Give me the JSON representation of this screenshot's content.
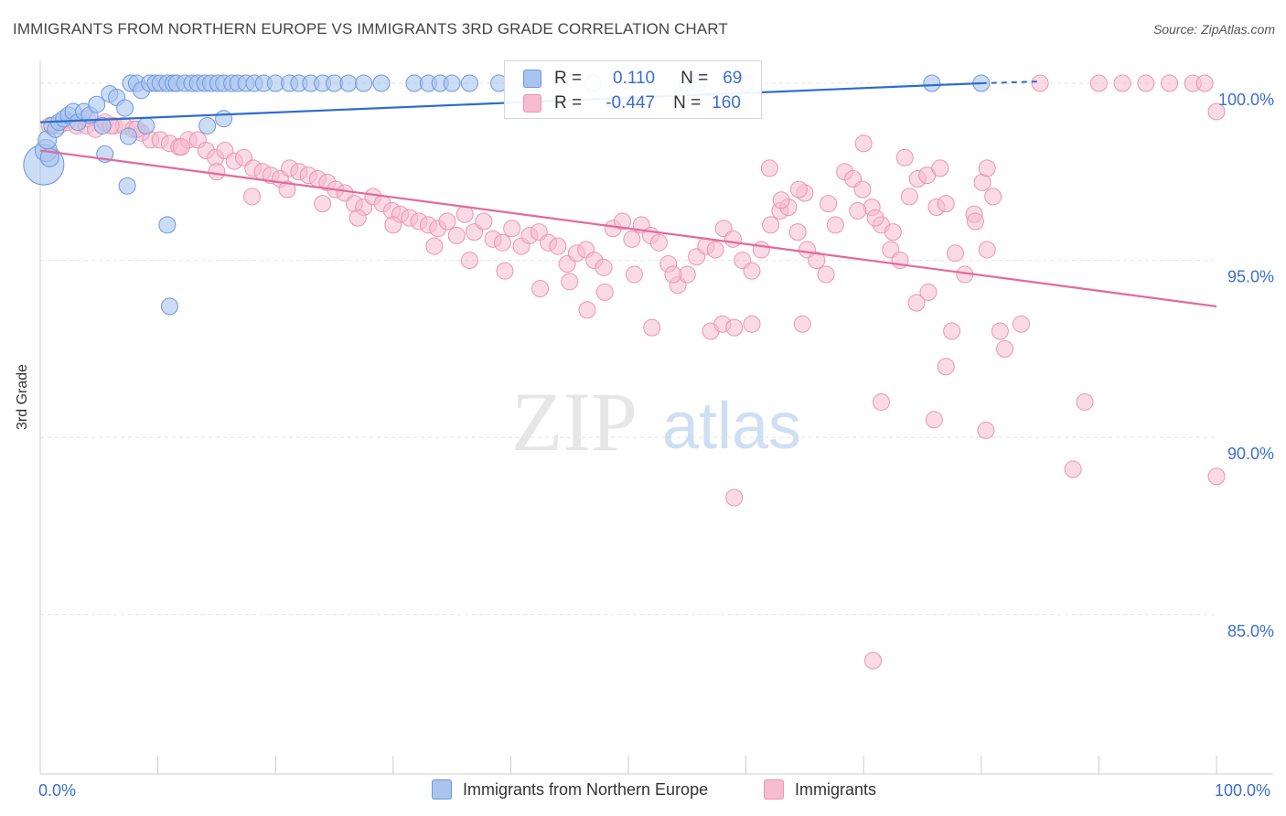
{
  "title": "IMMIGRANTS FROM NORTHERN EUROPE VS IMMIGRANTS 3RD GRADE CORRELATION CHART",
  "source": "Source: ZipAtlas.com",
  "watermark": {
    "zip": "ZIP",
    "atlas": "atlas"
  },
  "legend_box": {
    "rows": [
      {
        "r_label": "R =",
        "r_value": "0.110",
        "n_label": "N =",
        "n_value": "69"
      },
      {
        "r_label": "R =",
        "r_value": "-0.447",
        "n_label": "N =",
        "n_value": "160"
      }
    ]
  },
  "bottom_legend": [
    "Immigrants from Northern Europe",
    "Immigrants"
  ],
  "colors": {
    "blue_fill": "#a9c4ef",
    "blue_stroke": "#6f97dc",
    "blue_line": "#2b6ccf",
    "pink_fill": "#f6bcd0",
    "pink_stroke": "#ec94b3",
    "pink_line": "#e5689a",
    "accent_text": "#3a6fcf"
  },
  "chart_data": {
    "type": "scatter",
    "xlabel": "",
    "ylabel": "3rd Grade",
    "x_tick_labels": [
      "0.0%",
      "100.0%"
    ],
    "y_tick_labels": [
      "100.0%",
      "95.0%",
      "90.0%",
      "85.0%"
    ],
    "xlim": [
      0,
      100
    ],
    "ylim": [
      80.5,
      100.8
    ],
    "grid": true,
    "legend_placement": "top-center",
    "series": [
      {
        "name": "Immigrants from Northern Europe",
        "r": 0.11,
        "n": 69,
        "trend": {
          "x0": 0,
          "y0": 98.9,
          "x1": 80,
          "y1": 100.0,
          "dash_to": 85,
          "dash_y": 100.05
        },
        "points": [
          [
            0.3,
            97.7,
            22
          ],
          [
            0.5,
            98.1,
            12
          ],
          [
            0.6,
            98.4,
            10
          ],
          [
            0.8,
            97.9,
            10
          ],
          [
            1.0,
            98.8,
            9
          ],
          [
            1.3,
            98.7,
            9
          ],
          [
            1.6,
            98.9,
            9
          ],
          [
            2.0,
            99.0,
            9
          ],
          [
            2.4,
            99.1,
            9
          ],
          [
            2.8,
            99.2,
            9
          ],
          [
            3.2,
            98.9,
            9
          ],
          [
            3.7,
            99.2,
            9
          ],
          [
            4.2,
            99.1,
            9
          ],
          [
            4.8,
            99.4,
            9
          ],
          [
            5.3,
            98.8,
            9
          ],
          [
            5.9,
            99.7,
            9
          ],
          [
            6.5,
            99.6,
            9
          ],
          [
            7.2,
            99.3,
            9
          ],
          [
            7.7,
            100,
            9
          ],
          [
            8.2,
            100,
            9
          ],
          [
            8.6,
            99.8,
            9
          ],
          [
            9.3,
            100,
            9
          ],
          [
            9.8,
            100,
            9
          ],
          [
            10.2,
            100,
            9
          ],
          [
            10.8,
            100,
            9
          ],
          [
            11.3,
            100,
            9
          ],
          [
            11.6,
            100,
            9
          ],
          [
            12.3,
            100,
            9
          ],
          [
            12.9,
            100,
            9
          ],
          [
            13.4,
            100,
            9
          ],
          [
            14.0,
            100,
            9
          ],
          [
            14.5,
            100,
            9
          ],
          [
            15.1,
            100,
            9
          ],
          [
            15.6,
            100,
            9
          ],
          [
            16.3,
            100,
            9
          ],
          [
            16.8,
            100,
            9
          ],
          [
            17.5,
            100,
            9
          ],
          [
            18.2,
            100,
            9
          ],
          [
            19.0,
            100,
            9
          ],
          [
            20.0,
            100,
            9
          ],
          [
            21.2,
            100,
            9
          ],
          [
            22.0,
            100,
            9
          ],
          [
            23.0,
            100,
            9
          ],
          [
            24.0,
            100,
            9
          ],
          [
            25.0,
            100,
            9
          ],
          [
            26.2,
            100,
            9
          ],
          [
            27.5,
            100,
            9
          ],
          [
            29.0,
            100,
            9
          ],
          [
            31.8,
            100,
            9
          ],
          [
            33.0,
            100,
            9
          ],
          [
            34.0,
            100,
            9
          ],
          [
            35.0,
            100,
            9
          ],
          [
            36.5,
            100,
            9
          ],
          [
            39.0,
            100,
            9
          ],
          [
            42.0,
            100,
            9
          ],
          [
            47.0,
            100,
            9
          ],
          [
            55.0,
            100,
            9
          ],
          [
            56.0,
            100,
            9
          ],
          [
            60.0,
            100,
            9
          ],
          [
            75.8,
            100,
            9
          ],
          [
            80.0,
            100,
            9
          ],
          [
            7.5,
            98.5,
            9
          ],
          [
            9.0,
            98.8,
            9
          ],
          [
            14.2,
            98.8,
            9
          ],
          [
            15.6,
            99.0,
            9
          ],
          [
            7.4,
            97.1,
            9
          ],
          [
            5.5,
            98.0,
            9
          ],
          [
            10.8,
            96.0,
            9
          ],
          [
            11.0,
            93.7,
            9
          ]
        ]
      },
      {
        "name": "Immigrants",
        "r": -0.447,
        "n": 160,
        "trend": {
          "x0": 0,
          "y0": 98.1,
          "x1": 100,
          "y1": 93.7
        },
        "points": [
          [
            0.8,
            98.8
          ],
          [
            1.6,
            98.8
          ],
          [
            2.3,
            98.9
          ],
          [
            3.1,
            98.8
          ],
          [
            3.9,
            98.8
          ],
          [
            4.7,
            98.7
          ],
          [
            5.5,
            98.9
          ],
          [
            6.3,
            98.8
          ],
          [
            7.1,
            98.8
          ],
          [
            7.9,
            98.7
          ],
          [
            8.6,
            98.6
          ],
          [
            9.4,
            98.4
          ],
          [
            10.2,
            98.4
          ],
          [
            11.0,
            98.3
          ],
          [
            11.8,
            98.2
          ],
          [
            12.6,
            98.4
          ],
          [
            13.4,
            98.4
          ],
          [
            14.1,
            98.1
          ],
          [
            14.9,
            97.9
          ],
          [
            15.7,
            98.1
          ],
          [
            16.5,
            97.8
          ],
          [
            17.3,
            97.9
          ],
          [
            18.1,
            97.6
          ],
          [
            18.9,
            97.5
          ],
          [
            19.6,
            97.4
          ],
          [
            20.4,
            97.3
          ],
          [
            21.2,
            97.6
          ],
          [
            22.0,
            97.5
          ],
          [
            22.8,
            97.4
          ],
          [
            23.6,
            97.3
          ],
          [
            24.4,
            97.2
          ],
          [
            25.1,
            97.0
          ],
          [
            25.9,
            96.9
          ],
          [
            26.7,
            96.6
          ],
          [
            27.5,
            96.5
          ],
          [
            28.3,
            96.8
          ],
          [
            29.1,
            96.6
          ],
          [
            29.9,
            96.4
          ],
          [
            30.6,
            96.3
          ],
          [
            31.4,
            96.2
          ],
          [
            32.2,
            96.1
          ],
          [
            33.0,
            96.0
          ],
          [
            33.8,
            95.9
          ],
          [
            34.6,
            96.1
          ],
          [
            35.4,
            95.7
          ],
          [
            36.1,
            96.3
          ],
          [
            36.9,
            95.8
          ],
          [
            37.7,
            96.1
          ],
          [
            38.5,
            95.6
          ],
          [
            39.3,
            95.5
          ],
          [
            40.1,
            95.9
          ],
          [
            40.9,
            95.4
          ],
          [
            41.6,
            95.7
          ],
          [
            42.4,
            95.8
          ],
          [
            43.2,
            95.5
          ],
          [
            44.0,
            95.4
          ],
          [
            44.8,
            94.9
          ],
          [
            45.6,
            95.2
          ],
          [
            46.4,
            95.3
          ],
          [
            47.1,
            95.0
          ],
          [
            47.9,
            94.8
          ],
          [
            48.7,
            95.9
          ],
          [
            49.5,
            96.1
          ],
          [
            50.3,
            95.6
          ],
          [
            51.1,
            96.0
          ],
          [
            51.9,
            95.7
          ],
          [
            52.6,
            95.5
          ],
          [
            53.4,
            94.9
          ],
          [
            54.2,
            94.3
          ],
          [
            55.0,
            94.6
          ],
          [
            55.8,
            95.1
          ],
          [
            56.6,
            95.4
          ],
          [
            57.4,
            95.3
          ],
          [
            58.1,
            95.9
          ],
          [
            58.9,
            95.6
          ],
          [
            59.7,
            95.0
          ],
          [
            60.5,
            94.7
          ],
          [
            61.3,
            95.3
          ],
          [
            62.1,
            96.0
          ],
          [
            62.9,
            96.4
          ],
          [
            63.6,
            96.5
          ],
          [
            64.4,
            95.8
          ],
          [
            65.2,
            95.3
          ],
          [
            66.0,
            95.0
          ],
          [
            66.8,
            94.6
          ],
          [
            67.6,
            96.0
          ],
          [
            68.4,
            97.5
          ],
          [
            69.1,
            97.3
          ],
          [
            69.9,
            97.0
          ],
          [
            70.7,
            96.5
          ],
          [
            71.5,
            96.0
          ],
          [
            72.3,
            95.3
          ],
          [
            73.1,
            95.0
          ],
          [
            73.9,
            96.8
          ],
          [
            74.6,
            97.3
          ],
          [
            75.4,
            97.4
          ],
          [
            76.2,
            96.5
          ],
          [
            77.0,
            96.6
          ],
          [
            77.8,
            95.2
          ],
          [
            78.6,
            94.6
          ],
          [
            79.4,
            96.3
          ],
          [
            80.1,
            97.2
          ],
          [
            81.0,
            96.8
          ],
          [
            4.0,
            99.0
          ],
          [
            6.0,
            98.8
          ],
          [
            8.2,
            98.7
          ],
          [
            12.0,
            98.2
          ],
          [
            15.0,
            97.5
          ],
          [
            18.0,
            96.8
          ],
          [
            21.0,
            97.0
          ],
          [
            24.0,
            96.6
          ],
          [
            27.0,
            96.2
          ],
          [
            30.0,
            96.0
          ],
          [
            33.5,
            95.4
          ],
          [
            36.5,
            95.0
          ],
          [
            39.5,
            94.7
          ],
          [
            42.5,
            94.2
          ],
          [
            45.0,
            94.4
          ],
          [
            46.5,
            93.6
          ],
          [
            48.0,
            94.1
          ],
          [
            50.5,
            94.6
          ],
          [
            52.0,
            93.1
          ],
          [
            53.8,
            94.6
          ],
          [
            57.0,
            93.0
          ],
          [
            58.0,
            93.2
          ],
          [
            59.0,
            93.1
          ],
          [
            60.5,
            93.2
          ],
          [
            63.0,
            96.7
          ],
          [
            65.0,
            96.9
          ],
          [
            67.0,
            96.6
          ],
          [
            69.5,
            96.4
          ],
          [
            71.0,
            96.2
          ],
          [
            72.5,
            95.8
          ],
          [
            74.5,
            93.8
          ],
          [
            75.5,
            94.1
          ],
          [
            77.5,
            93.0
          ],
          [
            79.5,
            96.1
          ],
          [
            80.5,
            95.3
          ],
          [
            82.0,
            92.5
          ],
          [
            62.0,
            97.6
          ],
          [
            64.5,
            97.0
          ],
          [
            70.0,
            98.3
          ],
          [
            73.5,
            97.9
          ],
          [
            76.5,
            97.6
          ],
          [
            80.5,
            97.6
          ],
          [
            85.0,
            100
          ],
          [
            90.0,
            100
          ],
          [
            92.0,
            100
          ],
          [
            94.0,
            100
          ],
          [
            96.0,
            100
          ],
          [
            98.0,
            100
          ],
          [
            99.0,
            100
          ],
          [
            100.0,
            99.2
          ],
          [
            64.8,
            93.2
          ],
          [
            71.5,
            91.0
          ],
          [
            76.0,
            90.5
          ],
          [
            80.4,
            90.2
          ],
          [
            81.6,
            93.0
          ],
          [
            83.4,
            93.2
          ],
          [
            59.0,
            88.3
          ],
          [
            70.8,
            83.7
          ],
          [
            77.0,
            92.0
          ],
          [
            100.0,
            88.9
          ],
          [
            88.8,
            91.0
          ],
          [
            87.8,
            89.1
          ]
        ]
      }
    ]
  }
}
